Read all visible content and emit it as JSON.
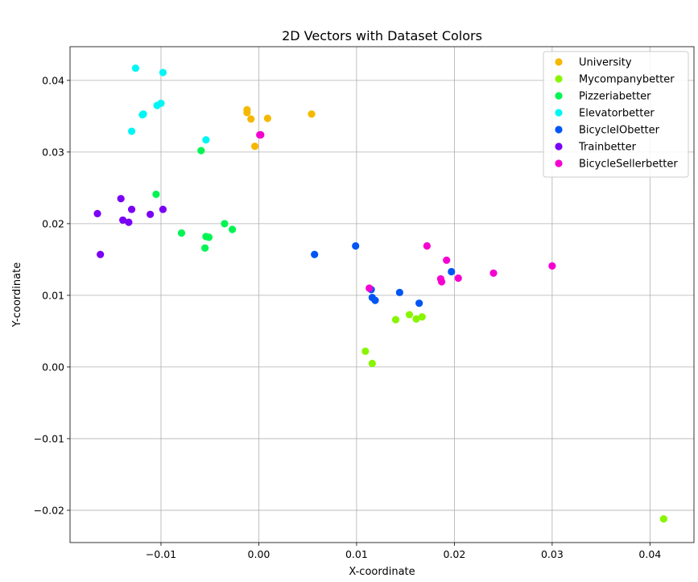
{
  "chart_data": {
    "type": "scatter",
    "title": "2D Vectors with Dataset Colors",
    "xlabel": "X-coordinate",
    "ylabel": "Y-coordinate",
    "xlim": [
      -0.0193,
      0.0445
    ],
    "ylim": [
      -0.0245,
      0.0447
    ],
    "xticks": [
      -0.01,
      0.0,
      0.01,
      0.02,
      0.03,
      0.04
    ],
    "xtick_labels": [
      "−0.01",
      "0.00",
      "0.01",
      "0.02",
      "0.03",
      "0.04"
    ],
    "yticks": [
      -0.02,
      -0.01,
      0.0,
      0.01,
      0.02,
      0.03,
      0.04
    ],
    "ytick_labels": [
      "−0.02",
      "−0.01",
      "0.00",
      "0.01",
      "0.02",
      "0.03",
      "0.04"
    ],
    "grid": true,
    "legend_position": "top-right",
    "series": [
      {
        "name": "University",
        "color": "#f5b800",
        "points": [
          [
            -0.0012,
            0.0359
          ],
          [
            -0.0012,
            0.0355
          ],
          [
            -0.0008,
            0.0346
          ],
          [
            0.0009,
            0.0347
          ],
          [
            0.0054,
            0.0353
          ],
          [
            -0.0004,
            0.0308
          ]
        ]
      },
      {
        "name": "Mycompanybetter",
        "color": "#88f500",
        "points": [
          [
            0.014,
            0.0066
          ],
          [
            0.0154,
            0.0073
          ],
          [
            0.0161,
            0.0067
          ],
          [
            0.0167,
            0.007
          ],
          [
            0.0109,
            0.0022
          ],
          [
            0.0116,
            0.0005
          ],
          [
            0.0414,
            -0.0212
          ]
        ]
      },
      {
        "name": "Pizzeriabetter",
        "color": "#00f552",
        "points": [
          [
            -0.0059,
            0.0302
          ],
          [
            -0.0105,
            0.0241
          ],
          [
            -0.0079,
            0.0187
          ],
          [
            -0.0054,
            0.0182
          ],
          [
            -0.0051,
            0.0181
          ],
          [
            -0.0035,
            0.02
          ],
          [
            -0.0027,
            0.0192
          ],
          [
            -0.0055,
            0.0166
          ]
        ]
      },
      {
        "name": "Elevatorbetter",
        "color": "#00f5f5",
        "points": [
          [
            -0.0126,
            0.0417
          ],
          [
            -0.0098,
            0.0411
          ],
          [
            -0.0118,
            0.0353
          ],
          [
            -0.0119,
            0.0352
          ],
          [
            -0.0104,
            0.0365
          ],
          [
            -0.01,
            0.0368
          ],
          [
            -0.013,
            0.0329
          ],
          [
            -0.0054,
            0.0317
          ]
        ]
      },
      {
        "name": "BicycleIObetter",
        "color": "#0055f5",
        "points": [
          [
            0.0057,
            0.0157
          ],
          [
            0.0099,
            0.0169
          ],
          [
            0.0115,
            0.0108
          ],
          [
            0.0116,
            0.0097
          ],
          [
            0.0119,
            0.0093
          ],
          [
            0.0144,
            0.0104
          ],
          [
            0.0164,
            0.0089
          ],
          [
            0.0197,
            0.0133
          ]
        ]
      },
      {
        "name": "Trainbetter",
        "color": "#7a00f5",
        "points": [
          [
            -0.0165,
            0.0214
          ],
          [
            -0.0141,
            0.0235
          ],
          [
            -0.013,
            0.022
          ],
          [
            -0.0098,
            0.022
          ],
          [
            -0.0139,
            0.0205
          ],
          [
            -0.0133,
            0.0202
          ],
          [
            -0.0111,
            0.0213
          ],
          [
            -0.0162,
            0.0157
          ]
        ]
      },
      {
        "name": "BicycleSellerbetter",
        "color": "#f500d1",
        "points": [
          [
            0.0001,
            0.0324
          ],
          [
            0.0002,
            0.0324
          ],
          [
            0.0172,
            0.0169
          ],
          [
            0.0192,
            0.0149
          ],
          [
            0.0186,
            0.0123
          ],
          [
            0.0187,
            0.0119
          ],
          [
            0.0204,
            0.0124
          ],
          [
            0.024,
            0.0131
          ],
          [
            0.03,
            0.0141
          ],
          [
            0.0113,
            0.011
          ]
        ]
      }
    ]
  }
}
